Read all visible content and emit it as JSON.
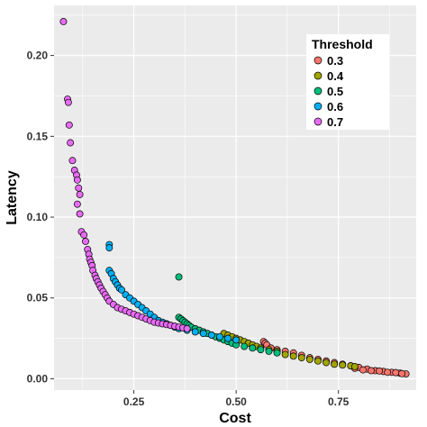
{
  "chart_data": {
    "type": "scatter",
    "xlabel": "Cost",
    "ylabel": "Latency",
    "xlim": [
      0.055,
      0.94
    ],
    "ylim": [
      -0.007,
      0.231
    ],
    "x_ticks": [
      0.25,
      0.5,
      0.75
    ],
    "x_tick_labels": [
      "0.25",
      "0.50",
      "0.75"
    ],
    "y_ticks": [
      0.0,
      0.05,
      0.1,
      0.15,
      0.2
    ],
    "y_tick_labels": [
      "0.00",
      "0.05",
      "0.10",
      "0.15",
      "0.20"
    ],
    "grid": true,
    "legend": {
      "title": "Threshold",
      "position": "top-right"
    },
    "series": [
      {
        "name": "0.3",
        "color": "#F8766D",
        "points": [
          [
            0.567,
            0.023
          ],
          [
            0.571,
            0.022
          ],
          [
            0.575,
            0.021
          ],
          [
            0.585,
            0.019
          ],
          [
            0.6,
            0.018
          ],
          [
            0.62,
            0.017
          ],
          [
            0.64,
            0.016
          ],
          [
            0.66,
            0.0145
          ],
          [
            0.68,
            0.013
          ],
          [
            0.7,
            0.012
          ],
          [
            0.72,
            0.011
          ],
          [
            0.74,
            0.01
          ],
          [
            0.76,
            0.009
          ],
          [
            0.78,
            0.008
          ],
          [
            0.8,
            0.007
          ],
          [
            0.82,
            0.006
          ],
          [
            0.84,
            0.005
          ],
          [
            0.86,
            0.0045
          ],
          [
            0.88,
            0.004
          ],
          [
            0.9,
            0.0035
          ],
          [
            0.915,
            0.003
          ],
          [
            0.79,
            0.0065
          ],
          [
            0.81,
            0.0055
          ],
          [
            0.83,
            0.005
          ],
          [
            0.85,
            0.0048
          ],
          [
            0.87,
            0.004
          ],
          [
            0.89,
            0.0038
          ],
          [
            0.905,
            0.0032
          ]
        ]
      },
      {
        "name": "0.4",
        "color": "#A3A500",
        "points": [
          [
            0.47,
            0.028
          ],
          [
            0.48,
            0.027
          ],
          [
            0.49,
            0.026
          ],
          [
            0.5,
            0.025
          ],
          [
            0.51,
            0.024
          ],
          [
            0.52,
            0.023
          ],
          [
            0.53,
            0.022
          ],
          [
            0.54,
            0.021
          ],
          [
            0.55,
            0.02
          ],
          [
            0.56,
            0.019
          ],
          [
            0.58,
            0.018
          ],
          [
            0.6,
            0.017
          ],
          [
            0.62,
            0.015
          ],
          [
            0.64,
            0.014
          ],
          [
            0.66,
            0.013
          ],
          [
            0.68,
            0.012
          ],
          [
            0.7,
            0.011
          ],
          [
            0.72,
            0.01
          ],
          [
            0.74,
            0.009
          ],
          [
            0.76,
            0.0085
          ],
          [
            0.78,
            0.008
          ],
          [
            0.79,
            0.0075
          ]
        ]
      },
      {
        "name": "0.5",
        "color": "#00BF7D",
        "points": [
          [
            0.36,
            0.063
          ],
          [
            0.36,
            0.038
          ],
          [
            0.365,
            0.037
          ],
          [
            0.37,
            0.036
          ],
          [
            0.375,
            0.035
          ],
          [
            0.38,
            0.034
          ],
          [
            0.385,
            0.033
          ],
          [
            0.39,
            0.032
          ],
          [
            0.4,
            0.031
          ],
          [
            0.41,
            0.03
          ],
          [
            0.42,
            0.029
          ],
          [
            0.43,
            0.028
          ],
          [
            0.44,
            0.027
          ],
          [
            0.45,
            0.026
          ],
          [
            0.46,
            0.025
          ],
          [
            0.47,
            0.024
          ],
          [
            0.48,
            0.023
          ],
          [
            0.49,
            0.022
          ],
          [
            0.5,
            0.021
          ],
          [
            0.52,
            0.02
          ],
          [
            0.54,
            0.019
          ],
          [
            0.56,
            0.018
          ],
          [
            0.58,
            0.017
          ],
          [
            0.6,
            0.016
          ]
        ]
      },
      {
        "name": "0.6",
        "color": "#00B0F6",
        "points": [
          [
            0.19,
            0.083
          ],
          [
            0.19,
            0.081
          ],
          [
            0.19,
            0.067
          ],
          [
            0.195,
            0.065
          ],
          [
            0.2,
            0.062
          ],
          [
            0.205,
            0.06
          ],
          [
            0.21,
            0.058
          ],
          [
            0.215,
            0.056
          ],
          [
            0.22,
            0.055
          ],
          [
            0.23,
            0.052
          ],
          [
            0.24,
            0.05
          ],
          [
            0.25,
            0.048
          ],
          [
            0.26,
            0.046
          ],
          [
            0.27,
            0.044
          ],
          [
            0.28,
            0.042
          ],
          [
            0.29,
            0.04
          ],
          [
            0.3,
            0.038
          ],
          [
            0.31,
            0.036
          ],
          [
            0.32,
            0.035
          ],
          [
            0.33,
            0.034
          ],
          [
            0.34,
            0.033
          ],
          [
            0.35,
            0.032
          ],
          [
            0.36,
            0.031
          ],
          [
            0.38,
            0.03
          ],
          [
            0.4,
            0.029
          ],
          [
            0.42,
            0.028
          ],
          [
            0.44,
            0.027
          ],
          [
            0.46,
            0.026
          ],
          [
            0.48,
            0.025
          ],
          [
            0.5,
            0.024
          ]
        ]
      },
      {
        "name": "0.7",
        "color": "#E76BF3",
        "points": [
          [
            0.078,
            0.221
          ],
          [
            0.088,
            0.173
          ],
          [
            0.09,
            0.171
          ],
          [
            0.092,
            0.157
          ],
          [
            0.095,
            0.146
          ],
          [
            0.1,
            0.135
          ],
          [
            0.105,
            0.129
          ],
          [
            0.11,
            0.126
          ],
          [
            0.112,
            0.123
          ],
          [
            0.115,
            0.118
          ],
          [
            0.118,
            0.114
          ],
          [
            0.112,
            0.108
          ],
          [
            0.118,
            0.102
          ],
          [
            0.122,
            0.091
          ],
          [
            0.128,
            0.089
          ],
          [
            0.132,
            0.085
          ],
          [
            0.137,
            0.08
          ],
          [
            0.14,
            0.077
          ],
          [
            0.142,
            0.074
          ],
          [
            0.145,
            0.072
          ],
          [
            0.148,
            0.07
          ],
          [
            0.15,
            0.067
          ],
          [
            0.155,
            0.064
          ],
          [
            0.158,
            0.062
          ],
          [
            0.162,
            0.06
          ],
          [
            0.166,
            0.058
          ],
          [
            0.17,
            0.056
          ],
          [
            0.175,
            0.054
          ],
          [
            0.18,
            0.052
          ],
          [
            0.185,
            0.05
          ],
          [
            0.19,
            0.048
          ],
          [
            0.2,
            0.046
          ],
          [
            0.21,
            0.044
          ],
          [
            0.22,
            0.043
          ],
          [
            0.23,
            0.042
          ],
          [
            0.24,
            0.041
          ],
          [
            0.25,
            0.04
          ],
          [
            0.26,
            0.039
          ],
          [
            0.27,
            0.038
          ],
          [
            0.28,
            0.037
          ],
          [
            0.29,
            0.036
          ],
          [
            0.3,
            0.035
          ],
          [
            0.31,
            0.0345
          ],
          [
            0.32,
            0.034
          ],
          [
            0.33,
            0.0335
          ],
          [
            0.34,
            0.033
          ],
          [
            0.35,
            0.0325
          ],
          [
            0.36,
            0.032
          ],
          [
            0.37,
            0.0315
          ],
          [
            0.38,
            0.031
          ]
        ]
      }
    ]
  }
}
